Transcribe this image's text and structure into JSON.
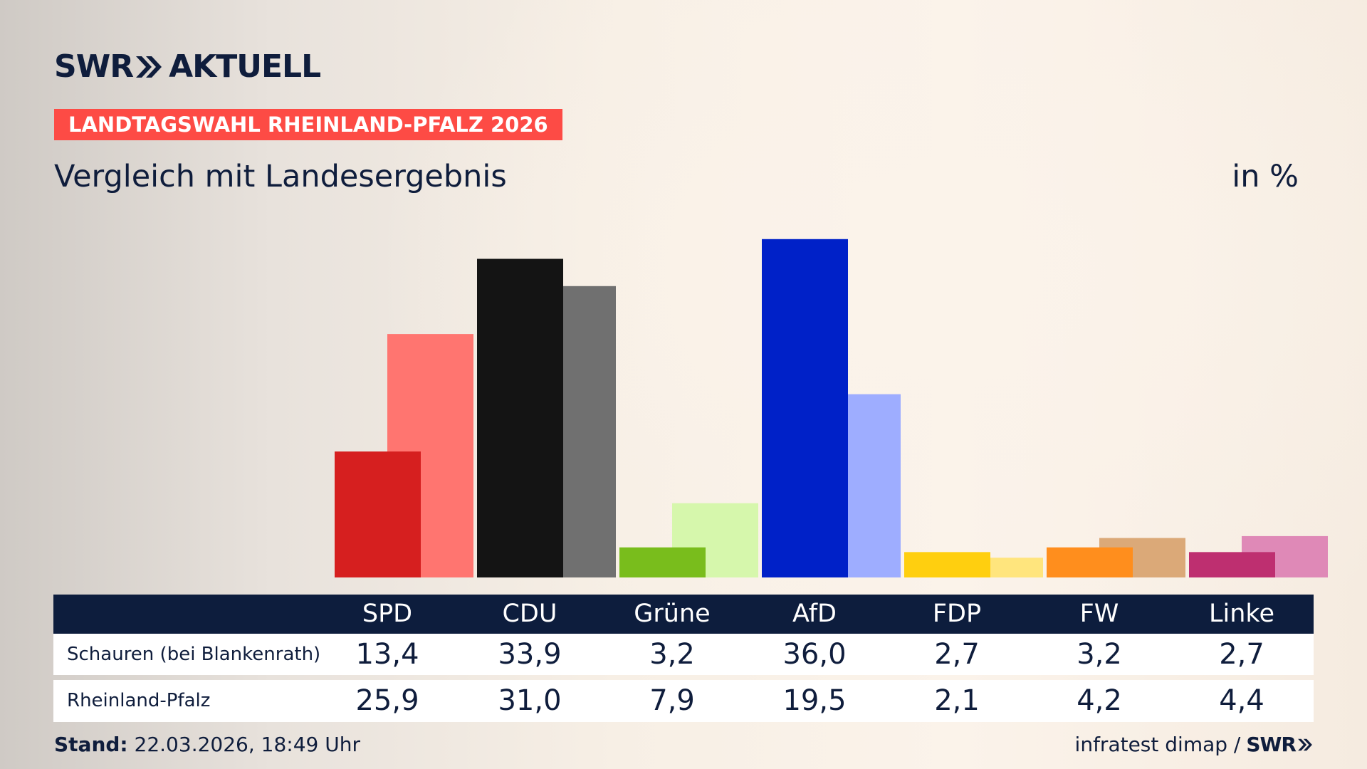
{
  "header": {
    "logo": {
      "text_left": "SWR",
      "text_right": "AKTUELL",
      "icon": "double-chevron-icon"
    },
    "tag": "LANDTAGSWAHL RHEINLAND-PFALZ 2026",
    "subtitle": "Vergleich mit Landesergebnis",
    "unit": "in %"
  },
  "chart_data": {
    "type": "bar",
    "title": "Vergleich mit Landesergebnis",
    "ylabel": "in %",
    "ylim": [
      0,
      40
    ],
    "categories": [
      "SPD",
      "CDU",
      "Grüne",
      "AfD",
      "FDP",
      "FW",
      "Linke"
    ],
    "series": [
      {
        "name": "Schauren (bei Blankenrath)",
        "values": [
          13.4,
          33.9,
          3.2,
          36.0,
          2.7,
          3.2,
          2.7
        ],
        "colors": [
          "#d61f1f",
          "#141414",
          "#79bd1c",
          "#0021c8",
          "#ffcf0f",
          "#ff8e1d",
          "#be2f70"
        ]
      },
      {
        "name": "Rheinland-Pfalz",
        "values": [
          25.9,
          31.0,
          7.9,
          19.5,
          2.1,
          4.2,
          4.4
        ],
        "colors": [
          "#ff7570",
          "#707070",
          "#d6f7ac",
          "#9eadff",
          "#ffe57d",
          "#dba978",
          "#df89b7"
        ]
      }
    ],
    "grid": false,
    "legend": "table-below"
  },
  "table": {
    "headers": [
      "SPD",
      "CDU",
      "Grüne",
      "AfD",
      "FDP",
      "FW",
      "Linke"
    ],
    "rows": [
      {
        "label": "Schauren (bei Blankenrath)",
        "values": [
          "13,4",
          "33,9",
          "3,2",
          "36,0",
          "2,7",
          "3,2",
          "2,7"
        ]
      },
      {
        "label": "Rheinland-Pfalz",
        "values": [
          "25,9",
          "31,0",
          "7,9",
          "19,5",
          "2,1",
          "4,2",
          "4,4"
        ]
      }
    ]
  },
  "footer": {
    "stand_label": "Stand:",
    "stand_value": "22.03.2026, 18:49 Uhr",
    "source": "infratest dimap /",
    "source_logo": "SWR",
    "source_icon": "double-chevron-icon"
  }
}
